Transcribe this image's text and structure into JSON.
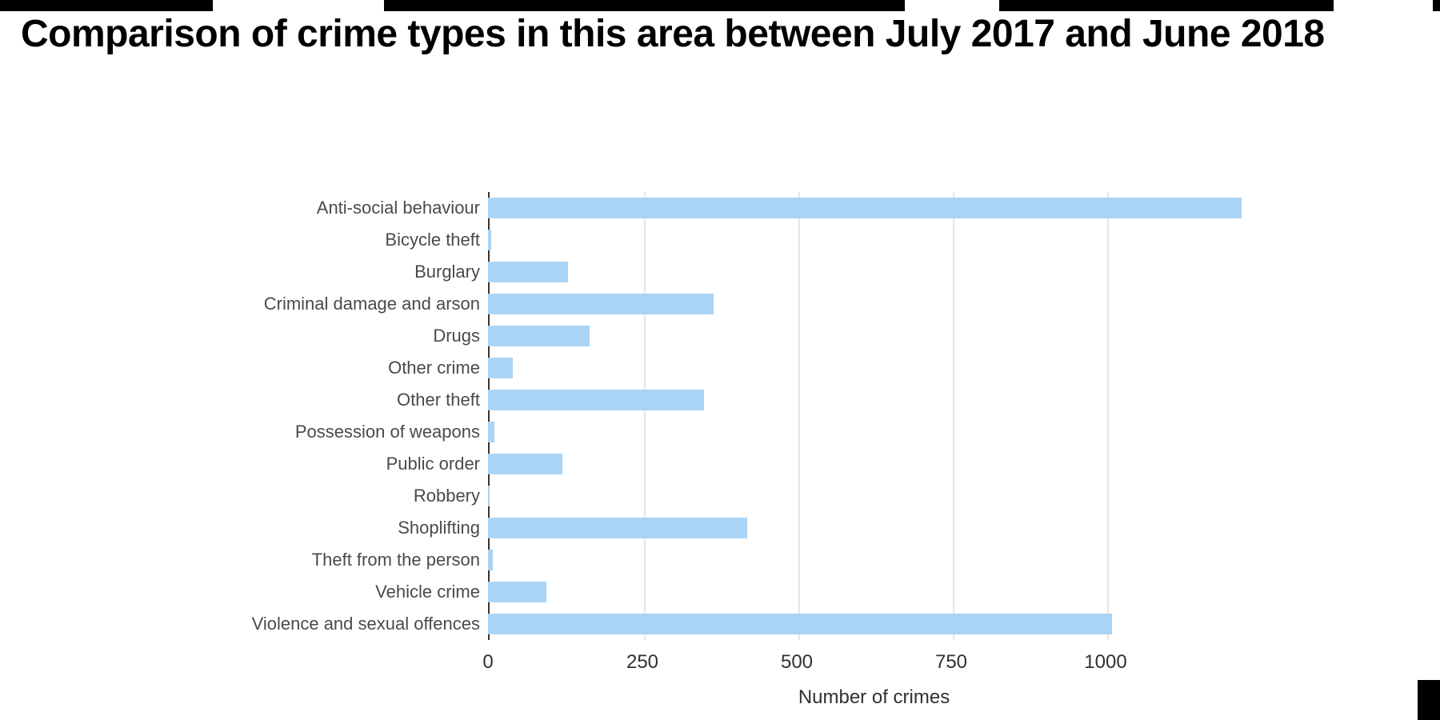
{
  "page": {
    "background": "#ffffff",
    "edge_artifact_color": "#000000"
  },
  "chart_data": {
    "type": "bar",
    "orientation": "horizontal",
    "title": "Comparison of crime types in this area between July 2017 and June 2018",
    "xlabel": "Number of crimes",
    "ylabel": "",
    "categories": [
      "Anti-social behaviour",
      "Bicycle theft",
      "Burglary",
      "Criminal damage and arson",
      "Drugs",
      "Other crime",
      "Other theft",
      "Possession of weapons",
      "Public order",
      "Robbery",
      "Shoplifting",
      "Theft from the person",
      "Vehicle crime",
      "Violence and sexual offences"
    ],
    "values": [
      1220,
      5,
      130,
      365,
      165,
      40,
      350,
      10,
      120,
      2,
      420,
      8,
      95,
      1010
    ],
    "xlim": [
      0,
      1250
    ],
    "xticks": [
      0,
      250,
      500,
      750,
      1000
    ],
    "grid": true,
    "legend": false,
    "bar_color": "#a9d4f5",
    "axis_color": "#333333",
    "grid_color": "#e6e6e6"
  }
}
